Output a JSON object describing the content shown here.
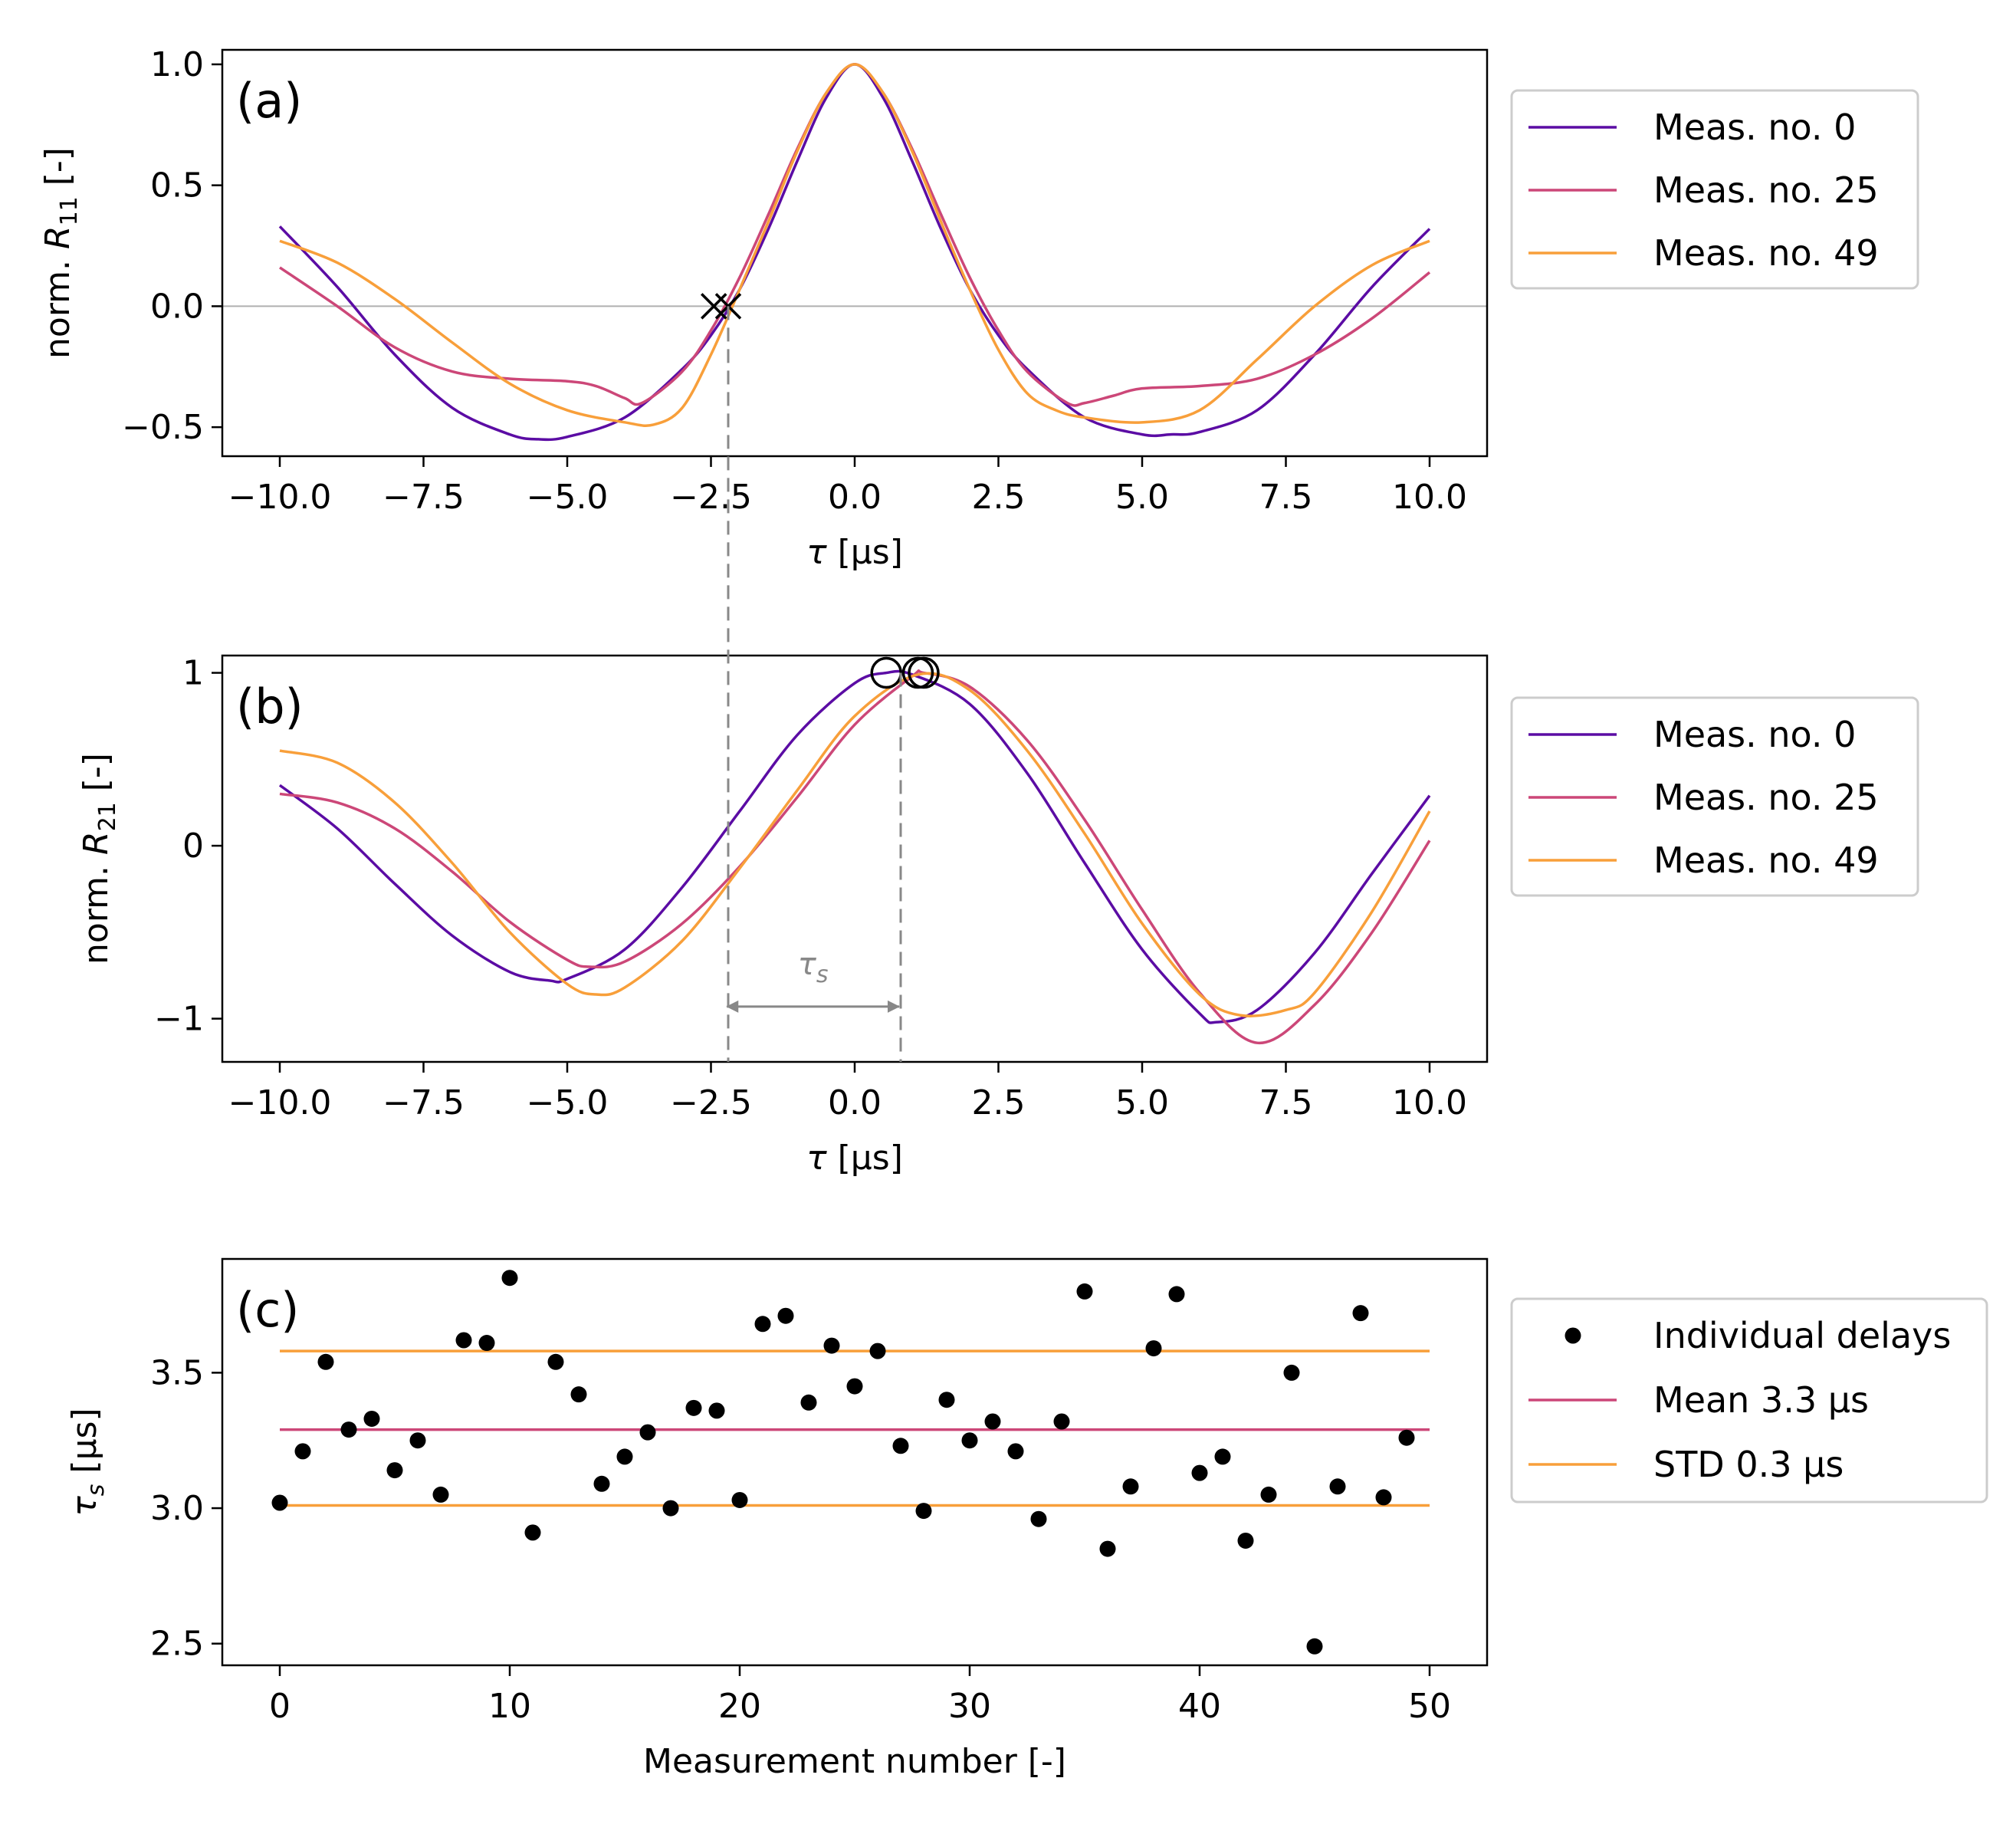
{
  "colors": {
    "meas0": "#5b0ca4",
    "meas25": "#cc4778",
    "meas49": "#f89f3a",
    "guide": "#888888",
    "zero": "#b0b0b0",
    "points": "#000000"
  },
  "chart_data": [
    {
      "id": "a",
      "type": "line",
      "panel_label": "(a)",
      "xlabel_var": "τ",
      "xlabel_unit": " [μs]",
      "ylabel_prefix": "norm. ",
      "ylabel_var": "R",
      "ylabel_sub": "11",
      "ylabel_suffix": " [-]",
      "xlim": [
        -11.0,
        11.0
      ],
      "ylim": [
        -0.62,
        1.06
      ],
      "xticks": [
        -10.0,
        -7.5,
        -5.0,
        -2.5,
        0.0,
        2.5,
        5.0,
        7.5,
        10.0
      ],
      "xtick_labels": [
        "−10.0",
        "−7.5",
        "−5.0",
        "−2.5",
        "0.0",
        "2.5",
        "5.0",
        "7.5",
        "10.0"
      ],
      "yticks": [
        -0.5,
        0.0,
        0.5,
        1.0
      ],
      "ytick_labels": [
        "−0.5",
        "0.0",
        "0.5",
        "1.0"
      ],
      "hline": 0.0,
      "legend": [
        "Meas. no. 0",
        "Meas. no. 25",
        "Meas. no. 49"
      ],
      "series": [
        {
          "name": "Meas. no. 0",
          "x": [
            -10,
            -9,
            -8,
            -7,
            -6,
            -5.5,
            -5,
            -4,
            -3,
            -2.5,
            -2,
            -1.5,
            -1,
            -0.5,
            0,
            0.5,
            1,
            1.5,
            2,
            2.5,
            3,
            4,
            5,
            5.5,
            6,
            7,
            8,
            9,
            10
          ],
          "y": [
            0.33,
            0.08,
            -0.2,
            -0.42,
            -0.53,
            -0.55,
            -0.54,
            -0.46,
            -0.26,
            -0.12,
            0.07,
            0.32,
            0.6,
            0.86,
            1.0,
            0.86,
            0.6,
            0.32,
            0.07,
            -0.12,
            -0.26,
            -0.46,
            -0.53,
            -0.53,
            -0.52,
            -0.43,
            -0.2,
            0.08,
            0.32
          ]
        },
        {
          "name": "Meas. no. 25",
          "x": [
            -10,
            -9,
            -8,
            -7,
            -6,
            -5,
            -4.5,
            -4,
            -3.7,
            -3,
            -2.5,
            -2,
            -1.5,
            -1,
            -0.5,
            0,
            0.5,
            1,
            1.5,
            2,
            2.5,
            3,
            3.7,
            4,
            4.5,
            5,
            6,
            7,
            8,
            9,
            10
          ],
          "y": [
            0.16,
            0.0,
            -0.17,
            -0.27,
            -0.3,
            -0.31,
            -0.33,
            -0.38,
            -0.4,
            -0.27,
            -0.1,
            0.12,
            0.38,
            0.65,
            0.88,
            1.0,
            0.88,
            0.65,
            0.38,
            0.12,
            -0.1,
            -0.27,
            -0.4,
            -0.4,
            -0.37,
            -0.34,
            -0.33,
            -0.3,
            -0.2,
            -0.05,
            0.14
          ]
        },
        {
          "name": "Meas. no. 49",
          "x": [
            -10,
            -9,
            -8,
            -7,
            -6,
            -5,
            -4,
            -3.5,
            -3,
            -2.5,
            -2,
            -1.5,
            -1,
            -0.5,
            0,
            0.5,
            1,
            1.5,
            2,
            2.5,
            3,
            3.5,
            4,
            5,
            6,
            7,
            8,
            9,
            10
          ],
          "y": [
            0.27,
            0.18,
            0.03,
            -0.15,
            -0.32,
            -0.43,
            -0.48,
            -0.49,
            -0.42,
            -0.2,
            0.07,
            0.35,
            0.64,
            0.88,
            1.0,
            0.88,
            0.64,
            0.35,
            0.07,
            -0.18,
            -0.36,
            -0.43,
            -0.46,
            -0.48,
            -0.43,
            -0.22,
            0.0,
            0.17,
            0.27
          ]
        }
      ],
      "markers": [
        {
          "type": "x",
          "x": -2.45,
          "y": 0.0
        },
        {
          "type": "x",
          "x": -2.2,
          "y": 0.0
        }
      ]
    },
    {
      "id": "b",
      "type": "line",
      "panel_label": "(b)",
      "xlabel_var": "τ",
      "xlabel_unit": " [μs]",
      "ylabel_prefix": "norm. ",
      "ylabel_var": "R",
      "ylabel_sub": "21",
      "ylabel_suffix": " [-]",
      "xlim": [
        -11.0,
        11.0
      ],
      "ylim": [
        -1.25,
        1.1
      ],
      "xticks": [
        -10.0,
        -7.5,
        -5.0,
        -2.5,
        0.0,
        2.5,
        5.0,
        7.5,
        10.0
      ],
      "xtick_labels": [
        "−10.0",
        "−7.5",
        "−5.0",
        "−2.5",
        "0.0",
        "2.5",
        "5.0",
        "7.5",
        "10.0"
      ],
      "yticks": [
        -1,
        0,
        1
      ],
      "ytick_labels": [
        "−1",
        "0",
        "1"
      ],
      "legend": [
        "Meas. no. 0",
        "Meas. no. 25",
        "Meas. no. 49"
      ],
      "series": [
        {
          "name": "Meas. no. 0",
          "x": [
            -10,
            -9,
            -8,
            -7,
            -6,
            -5.3,
            -5,
            -4,
            -3,
            -2,
            -1,
            0,
            0.55,
            1,
            2,
            3,
            4,
            5,
            6,
            6.3,
            7,
            8,
            9,
            10
          ],
          "y": [
            0.35,
            0.1,
            -0.22,
            -0.52,
            -0.73,
            -0.78,
            -0.77,
            -0.6,
            -0.24,
            0.2,
            0.64,
            0.94,
            1.0,
            0.99,
            0.82,
            0.42,
            -0.1,
            -0.6,
            -0.97,
            -1.02,
            -0.95,
            -0.62,
            -0.16,
            0.29
          ]
        },
        {
          "name": "Meas. no. 25",
          "x": [
            -10,
            -9,
            -8,
            -7,
            -6,
            -5,
            -4.6,
            -4,
            -3,
            -2,
            -1,
            0,
            1,
            1.2,
            2,
            3,
            4,
            5,
            6,
            7,
            8,
            9,
            10
          ],
          "y": [
            0.3,
            0.25,
            0.1,
            -0.15,
            -0.44,
            -0.66,
            -0.7,
            -0.67,
            -0.45,
            -0.12,
            0.28,
            0.7,
            0.98,
            1.0,
            0.92,
            0.61,
            0.15,
            -0.37,
            -0.85,
            -1.14,
            -0.92,
            -0.5,
            0.03
          ]
        },
        {
          "name": "Meas. no. 49",
          "x": [
            -10,
            -9,
            -8,
            -7,
            -6,
            -5,
            -4.5,
            -4,
            -3,
            -2,
            -1,
            0,
            1.1,
            2,
            3,
            4,
            5,
            6,
            6.7,
            7.5,
            8,
            9,
            10
          ],
          "y": [
            0.55,
            0.48,
            0.25,
            -0.1,
            -0.5,
            -0.8,
            -0.86,
            -0.82,
            -0.55,
            -0.13,
            0.32,
            0.75,
            0.99,
            0.9,
            0.55,
            0.07,
            -0.45,
            -0.86,
            -0.98,
            -0.95,
            -0.85,
            -0.38,
            0.2
          ]
        }
      ],
      "markers": [
        {
          "type": "o",
          "x": 0.55,
          "y": 1.0
        },
        {
          "type": "o",
          "x": 1.1,
          "y": 1.0
        },
        {
          "type": "o",
          "x": 1.2,
          "y": 1.0
        }
      ],
      "annotation": {
        "symbol": "τ",
        "subscript": "s",
        "x_start": -2.25,
        "x_end": 0.8,
        "y": -0.93
      }
    },
    {
      "id": "c",
      "type": "scatter",
      "panel_label": "(c)",
      "xlabel": "Measurement number [-]",
      "ylabel_var": "τ",
      "ylabel_sub": "s",
      "ylabel_suffix": " [μs]",
      "xlim": [
        -2.5,
        52.5
      ],
      "ylim": [
        2.42,
        3.92
      ],
      "xticks": [
        0,
        10,
        20,
        30,
        40,
        50
      ],
      "xtick_labels": [
        "0",
        "10",
        "20",
        "30",
        "40",
        "50"
      ],
      "yticks": [
        2.5,
        3.0,
        3.5
      ],
      "ytick_labels": [
        "2.5",
        "3.0",
        "3.5"
      ],
      "x": [
        0,
        1,
        2,
        3,
        4,
        5,
        6,
        7,
        8,
        9,
        10,
        11,
        12,
        13,
        14,
        15,
        16,
        17,
        18,
        19,
        20,
        21,
        22,
        23,
        24,
        25,
        26,
        27,
        28,
        29,
        30,
        31,
        32,
        33,
        34,
        35,
        36,
        37,
        38,
        39,
        40,
        41,
        42,
        43,
        44,
        45,
        46,
        47,
        48,
        49
      ],
      "values": [
        3.02,
        3.21,
        3.54,
        3.29,
        3.33,
        3.14,
        3.25,
        3.05,
        3.62,
        3.61,
        3.85,
        2.91,
        3.54,
        3.42,
        3.09,
        3.19,
        3.28,
        3.0,
        3.37,
        3.36,
        3.03,
        3.68,
        3.71,
        3.39,
        3.6,
        3.45,
        3.58,
        3.23,
        2.99,
        3.4,
        3.25,
        3.32,
        3.21,
        2.96,
        3.32,
        3.8,
        2.85,
        3.08,
        3.59,
        3.79,
        3.13,
        3.19,
        2.88,
        3.05,
        3.5,
        2.49,
        3.08,
        3.72,
        3.04,
        3.26
      ],
      "mean": 3.29,
      "std_lines": [
        3.58,
        3.01
      ],
      "legend": [
        {
          "label": "Individual delays",
          "kind": "dot"
        },
        {
          "label": "Mean 3.3 μs",
          "kind": "mean"
        },
        {
          "label": "STD 0.3 μs",
          "kind": "std"
        }
      ]
    }
  ]
}
